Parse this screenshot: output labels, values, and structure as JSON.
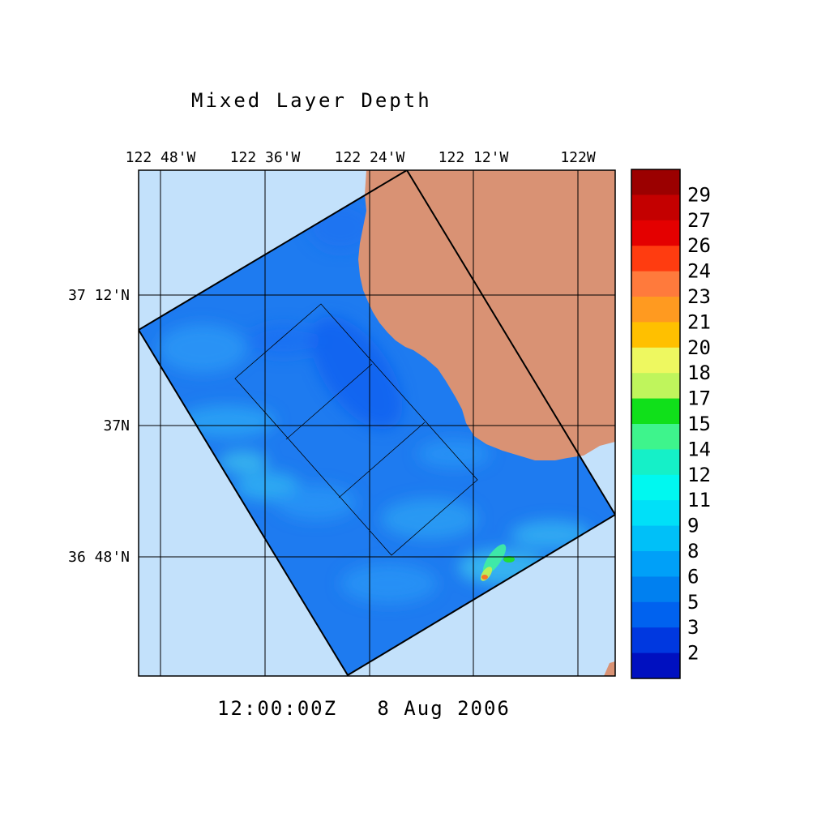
{
  "title": "Mixed Layer Depth",
  "timestamp": "12:00:00Z   8 Aug 2006",
  "axes": {
    "lon_ticks": [
      "122 48'W",
      "122 36'W",
      "122 24'W",
      "122 12'W",
      "122W"
    ],
    "lat_ticks": [
      "37 12'N",
      "37N",
      "36 48'N"
    ]
  },
  "colors": {
    "ocean_background": "#c3e1fb",
    "land": "#d99274",
    "domain_fill": "#1e7bf0",
    "grid": "#000000"
  },
  "colorbar": {
    "labels": [
      "29",
      "27",
      "26",
      "24",
      "23",
      "21",
      "20",
      "18",
      "17",
      "15",
      "14",
      "12",
      "11",
      "9",
      "8",
      "6",
      "5",
      "3",
      "2"
    ],
    "colors": [
      "#9b0000",
      "#c40000",
      "#e40000",
      "#ff3c10",
      "#ff7a3c",
      "#ff9a20",
      "#ffc000",
      "#eef860",
      "#bff55c",
      "#10e01a",
      "#3ef48c",
      "#15f0c8",
      "#00f8f0",
      "#00e0f8",
      "#00c0f8",
      "#00a0f8",
      "#0080f0",
      "#0062ef",
      "#0038e0",
      "#0010c0"
    ]
  }
}
